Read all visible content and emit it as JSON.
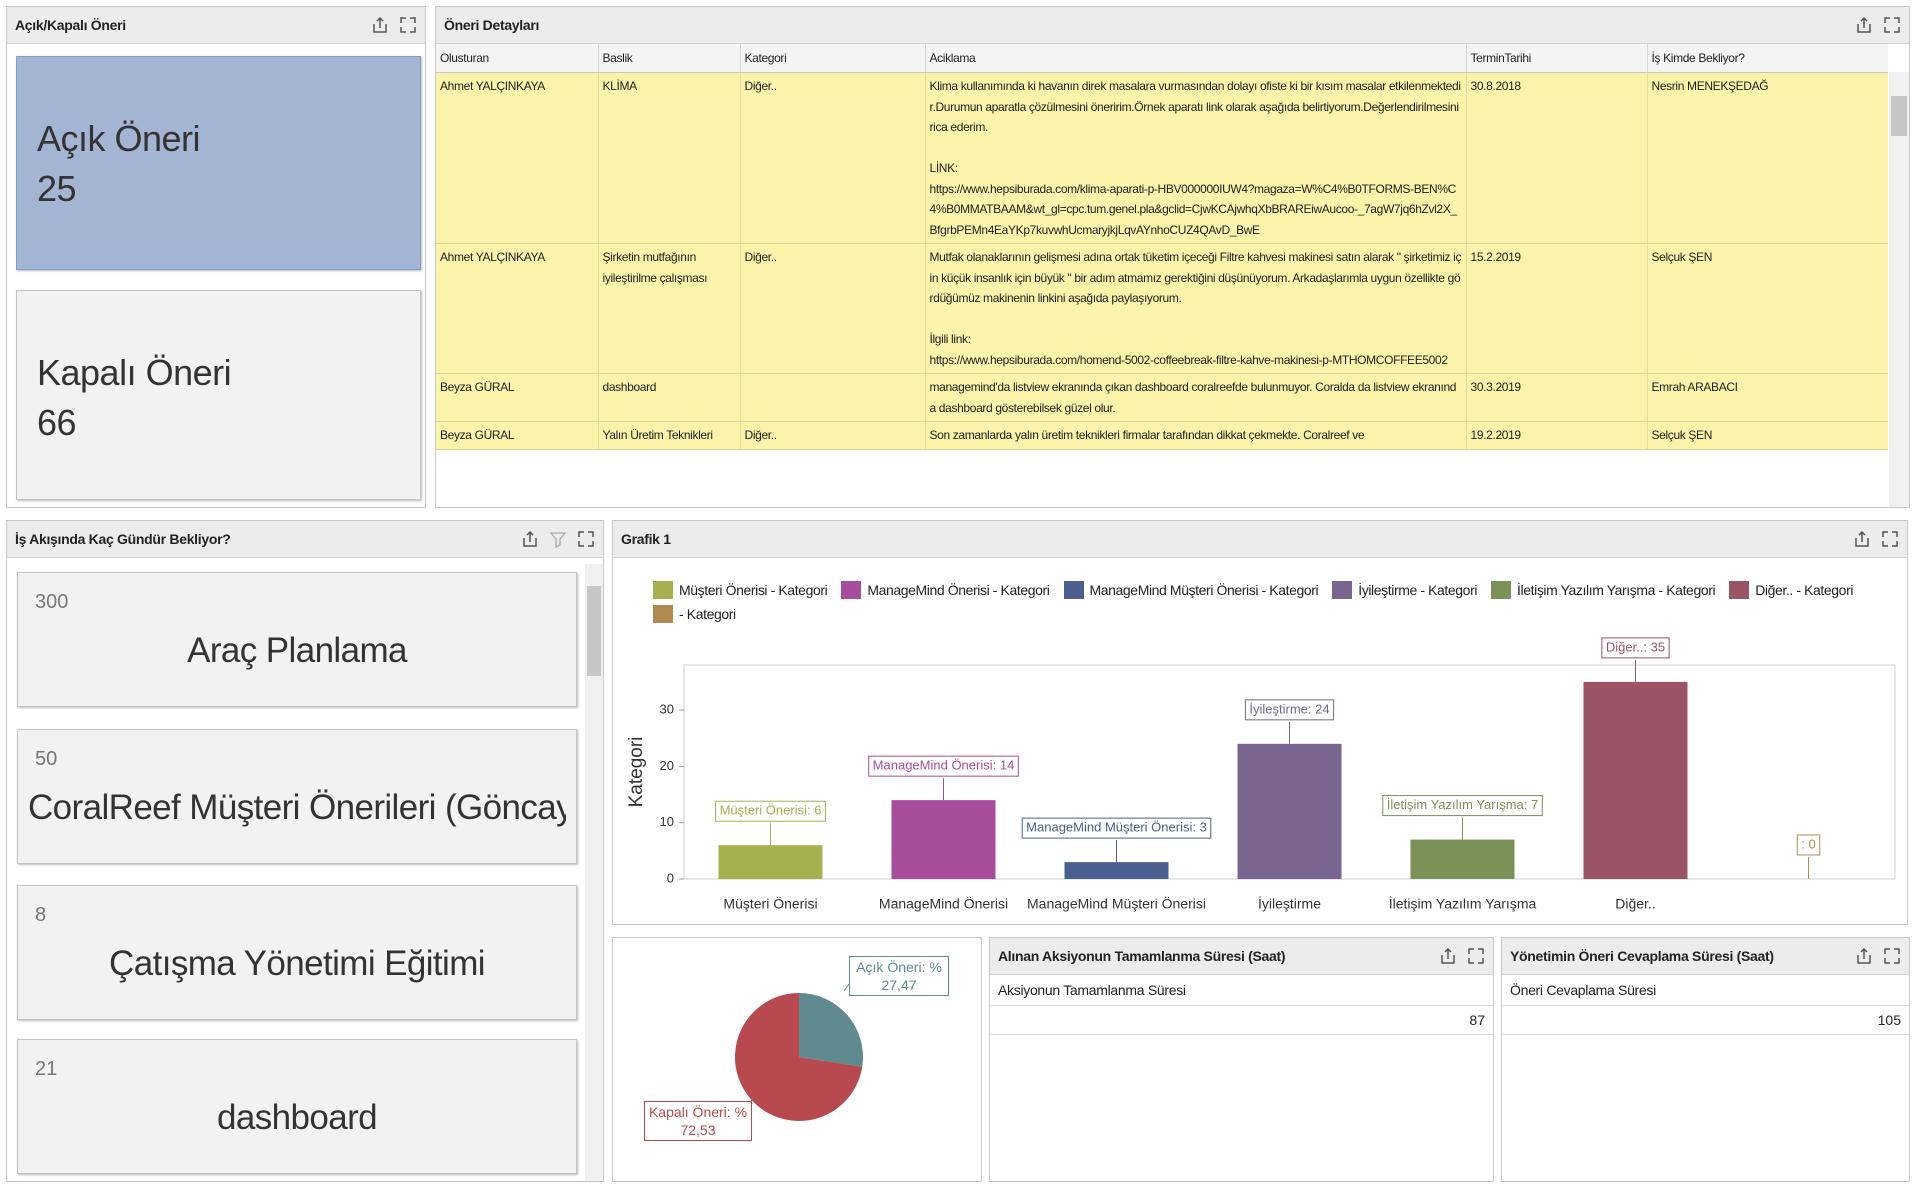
{
  "open_closed": {
    "title": "Açık/Kapalı Öneri",
    "cards": [
      {
        "label": "Açık Öneri",
        "value": 25
      },
      {
        "label": "Kapalı Öneri",
        "value": 66
      }
    ]
  },
  "details": {
    "title": "Öneri Detayları",
    "columns": [
      "Olusturan",
      "Baslik",
      "Kategori",
      "Aciklama",
      "TerminTarihi",
      "İş Kimde Bekliyor?"
    ],
    "rows": [
      [
        "Ahmet YALÇINKAYA",
        "KLİMA",
        "Diğer..",
        "Klima kullanımında ki havanın direk masalara vurmasından dolayı ofiste ki bir kısım masalar etkilenmektedir.Durumun aparatla çözülmesini öneririm.Örnek aparatı link olarak aşağıda belirtiyorum.Değerlendirilmesini rica ederim.\n\nLİNK:\nhttps://www.hepsiburada.com/klima-aparati-p-HBV000000IUW4?magaza=W%C4%B0TFORMS-BEN%C4%B0MMATBAAM&wt_gl=cpc.tum.genel.pla&gclid=CjwKCAjwhqXbBRAREiwAucoo-_7agW7jq6hZvl2X_BfgrbPEMn4EaYKp7kuvwhUcmaryjkjLqvAYnhoCUZ4QAvD_BwE",
        "30.8.2018",
        "Nesrin MENEKŞEDAĞ"
      ],
      [
        "Ahmet YALÇINKAYA",
        "Şirketin mutfağının iyileştirilme çalışması",
        "Diğer..",
        "Mutfak olanaklarının gelişmesi adına ortak tüketim içeceği Filtre kahvesi makinesi satın alarak \" şirketimiz için küçük insanlık için büyük \" bir adım atmamız gerektiğini düşünüyorum. Arkadaşlarımla uygun özellikte gördüğümüz makinenin linkini aşağıda paylaşıyorum.\n\nİlgili link:\nhttps://www.hepsiburada.com/homend-5002-coffeebreak-filtre-kahve-makinesi-p-MTHOMCOFFEE5002",
        "15.2.2019",
        "Selçuk ŞEN"
      ],
      [
        "Beyza GÜRAL",
        "dashboard",
        null,
        "managemind'da listview ekranında çıkan dashboard coralreefde bulunmuyor. Coralda da listview ekranında dashboard gösterebilsek güzel olur.",
        "30.3.2019",
        "Emrah ARABACI"
      ],
      [
        "Beyza GÜRAL",
        "Yalın Üretim Teknikleri",
        "Diğer..",
        "Son zamanlarda yalın üretim teknikleri firmalar tarafından dikkat çekmekte. Coralreef ve",
        "19.2.2019",
        "Selçuk ŞEN"
      ]
    ]
  },
  "waiting": {
    "title": "İş Akışında Kaç Gündür Bekliyor?",
    "items": [
      {
        "value": 300,
        "label": "Araç Planlama"
      },
      {
        "value": 50,
        "label": "CoralReef Müşteri Önerileri (Göncay..."
      },
      {
        "value": 8,
        "label": "Çatışma Yönetimi Eğitimi"
      },
      {
        "value": 21,
        "label": "dashboard"
      }
    ]
  },
  "chart_data": [
    {
      "type": "bar",
      "title": "Grafik 1",
      "y_label": "Kategori",
      "categories": [
        "Müşteri Önerisi",
        "ManageMind Önerisi",
        "ManageMind Müşteri Önerisi",
        "İyileştirme",
        "İletişim Yazılım Yarışma",
        "Diğer..",
        null
      ],
      "values": [
        6,
        14,
        3,
        24,
        7,
        35,
        0
      ],
      "value_labels": [
        "Müşteri Önerisi: 6",
        "ManageMind Önerisi: 14",
        "ManageMind Müşteri Önerisi: 3",
        "İyileştirme: 24",
        "İletişim Yazılım Yarışma: 7",
        "Diğer..: 35",
        ": 0"
      ],
      "colors": [
        "#a6b04f",
        "#a84d9b",
        "#4b5f8f",
        "#7a6591",
        "#7a9158",
        "#9b5466",
        "#b08a4f"
      ],
      "legend": [
        "Müşteri Önerisi - Kategori",
        "ManageMind Önerisi - Kategori",
        "ManageMind Müşteri Önerisi - Kategori",
        "İyileştirme - Kategori",
        "İletişim Yazılım Yarışma - Kategori",
        "Diğer.. - Kategori",
        "- Kategori"
      ],
      "ylim": [
        0,
        38
      ],
      "yticks": [
        0,
        10,
        20,
        30
      ],
      "grid": false
    },
    {
      "type": "pie",
      "values": [
        27.47,
        72.53
      ],
      "value_labels": [
        "Açık Öneri: % 27,47",
        "Kapalı Öneri: % 72,53"
      ],
      "colors": [
        "#5e8a90",
        "#b8494e"
      ]
    }
  ],
  "completion": {
    "title": "Alınan Aksiyonun Tamamlanma Süresi (Saat)",
    "column": "Aksiyonun Tamamlanma Süresi",
    "value": 87
  },
  "response": {
    "title": "Yönetimin Öneri Cevaplama Süresi (Saat)",
    "column": "Öneri Cevaplama Süresi",
    "value": 105
  }
}
